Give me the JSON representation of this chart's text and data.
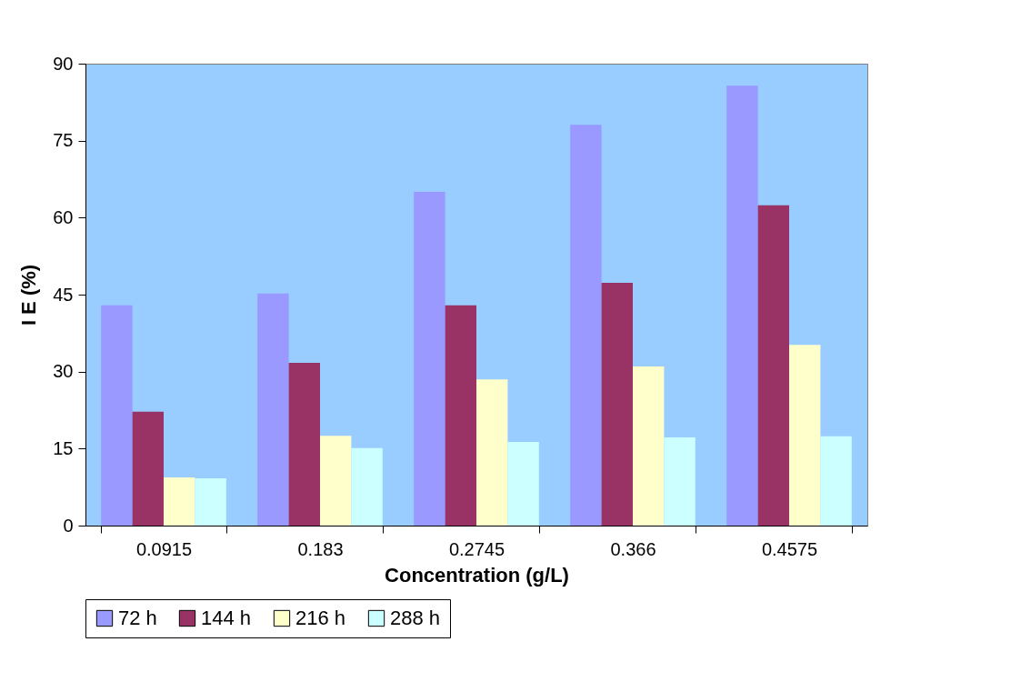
{
  "chart_data": {
    "type": "bar",
    "xlabel": "Concentration (g/L)",
    "ylabel": "I E (%)",
    "categories": [
      "0.0915",
      "0.183",
      "0.2745",
      "0.366",
      "0.4575"
    ],
    "series": [
      {
        "name": "72 h",
        "color": "#9999ff",
        "values": [
          42.9,
          45.2,
          65.0,
          78.1,
          85.7
        ]
      },
      {
        "name": "144 h",
        "color": "#993366",
        "values": [
          22.2,
          31.7,
          42.9,
          47.3,
          62.4
        ]
      },
      {
        "name": "216 h",
        "color": "#ffffcc",
        "values": [
          9.4,
          17.5,
          28.5,
          31.0,
          35.2
        ]
      },
      {
        "name": "288 h",
        "color": "#ccffff",
        "values": [
          9.2,
          15.1,
          16.3,
          17.2,
          17.4
        ]
      }
    ],
    "ylim": [
      0,
      90
    ],
    "yticks": [
      0,
      15,
      30,
      45,
      60,
      75,
      90
    ],
    "grid": false,
    "legend": "bottom"
  }
}
